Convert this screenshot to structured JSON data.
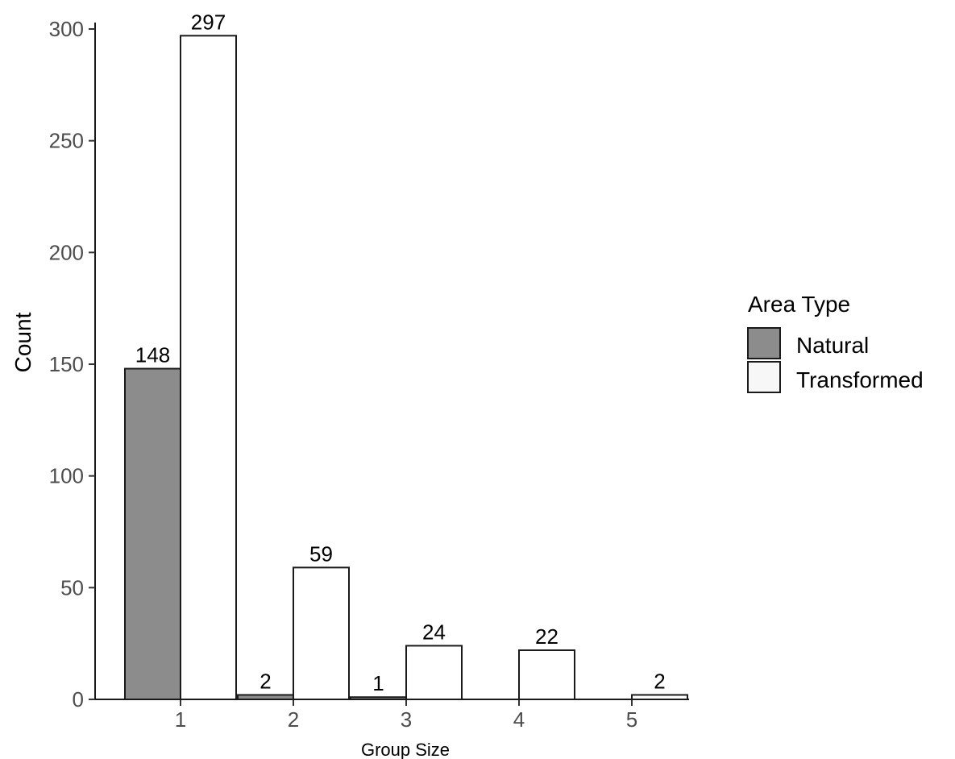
{
  "chart_data": {
    "type": "bar",
    "categories": [
      "1",
      "2",
      "3",
      "4",
      "5"
    ],
    "series": [
      {
        "name": "Natural",
        "values": [
          148,
          2,
          1,
          0,
          0
        ],
        "labels": [
          "148",
          "2",
          "1",
          "",
          ""
        ],
        "color": "#8c8c8c"
      },
      {
        "name": "Transformed",
        "values": [
          297,
          59,
          24,
          22,
          2
        ],
        "labels": [
          "297",
          "59",
          "24",
          "22",
          "2"
        ],
        "color": "#ffffff"
      }
    ],
    "xlabel": "Group Size",
    "ylabel": "Count",
    "ylim": [
      0,
      300
    ],
    "yticks": [
      0,
      50,
      100,
      150,
      200,
      250,
      300
    ],
    "legend": {
      "title": "Area Type",
      "position": "right"
    },
    "grid": false
  }
}
